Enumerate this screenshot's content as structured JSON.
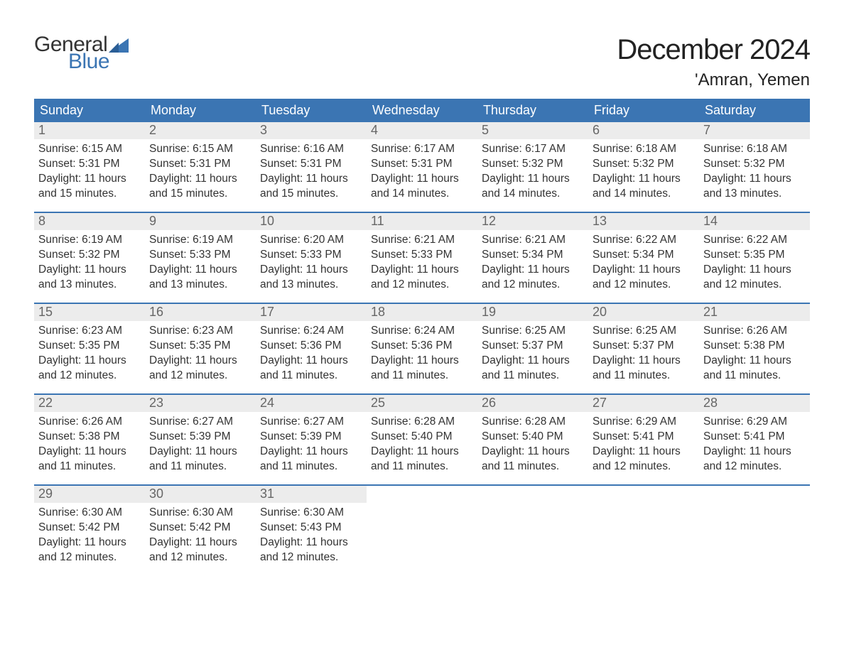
{
  "brand": {
    "line1": "General",
    "line2": "Blue",
    "accent_color": "#3b75b3"
  },
  "title": "December 2024",
  "location": "'Amran, Yemen",
  "colors": {
    "header_bg": "#3b75b3",
    "header_text": "#ffffff",
    "daynum_bg": "#ececec",
    "daynum_text": "#666666",
    "body_text": "#333333",
    "week_border": "#3b75b3",
    "page_bg": "#ffffff"
  },
  "typography": {
    "title_fontsize": 40,
    "location_fontsize": 24,
    "header_fontsize": 18,
    "daynum_fontsize": 18,
    "body_fontsize": 15.5,
    "logo_fontsize": 30
  },
  "day_headers": [
    "Sunday",
    "Monday",
    "Tuesday",
    "Wednesday",
    "Thursday",
    "Friday",
    "Saturday"
  ],
  "weeks": [
    [
      {
        "n": "1",
        "sunrise": "Sunrise: 6:15 AM",
        "sunset": "Sunset: 5:31 PM",
        "d1": "Daylight: 11 hours",
        "d2": "and 15 minutes."
      },
      {
        "n": "2",
        "sunrise": "Sunrise: 6:15 AM",
        "sunset": "Sunset: 5:31 PM",
        "d1": "Daylight: 11 hours",
        "d2": "and 15 minutes."
      },
      {
        "n": "3",
        "sunrise": "Sunrise: 6:16 AM",
        "sunset": "Sunset: 5:31 PM",
        "d1": "Daylight: 11 hours",
        "d2": "and 15 minutes."
      },
      {
        "n": "4",
        "sunrise": "Sunrise: 6:17 AM",
        "sunset": "Sunset: 5:31 PM",
        "d1": "Daylight: 11 hours",
        "d2": "and 14 minutes."
      },
      {
        "n": "5",
        "sunrise": "Sunrise: 6:17 AM",
        "sunset": "Sunset: 5:32 PM",
        "d1": "Daylight: 11 hours",
        "d2": "and 14 minutes."
      },
      {
        "n": "6",
        "sunrise": "Sunrise: 6:18 AM",
        "sunset": "Sunset: 5:32 PM",
        "d1": "Daylight: 11 hours",
        "d2": "and 14 minutes."
      },
      {
        "n": "7",
        "sunrise": "Sunrise: 6:18 AM",
        "sunset": "Sunset: 5:32 PM",
        "d1": "Daylight: 11 hours",
        "d2": "and 13 minutes."
      }
    ],
    [
      {
        "n": "8",
        "sunrise": "Sunrise: 6:19 AM",
        "sunset": "Sunset: 5:32 PM",
        "d1": "Daylight: 11 hours",
        "d2": "and 13 minutes."
      },
      {
        "n": "9",
        "sunrise": "Sunrise: 6:19 AM",
        "sunset": "Sunset: 5:33 PM",
        "d1": "Daylight: 11 hours",
        "d2": "and 13 minutes."
      },
      {
        "n": "10",
        "sunrise": "Sunrise: 6:20 AM",
        "sunset": "Sunset: 5:33 PM",
        "d1": "Daylight: 11 hours",
        "d2": "and 13 minutes."
      },
      {
        "n": "11",
        "sunrise": "Sunrise: 6:21 AM",
        "sunset": "Sunset: 5:33 PM",
        "d1": "Daylight: 11 hours",
        "d2": "and 12 minutes."
      },
      {
        "n": "12",
        "sunrise": "Sunrise: 6:21 AM",
        "sunset": "Sunset: 5:34 PM",
        "d1": "Daylight: 11 hours",
        "d2": "and 12 minutes."
      },
      {
        "n": "13",
        "sunrise": "Sunrise: 6:22 AM",
        "sunset": "Sunset: 5:34 PM",
        "d1": "Daylight: 11 hours",
        "d2": "and 12 minutes."
      },
      {
        "n": "14",
        "sunrise": "Sunrise: 6:22 AM",
        "sunset": "Sunset: 5:35 PM",
        "d1": "Daylight: 11 hours",
        "d2": "and 12 minutes."
      }
    ],
    [
      {
        "n": "15",
        "sunrise": "Sunrise: 6:23 AM",
        "sunset": "Sunset: 5:35 PM",
        "d1": "Daylight: 11 hours",
        "d2": "and 12 minutes."
      },
      {
        "n": "16",
        "sunrise": "Sunrise: 6:23 AM",
        "sunset": "Sunset: 5:35 PM",
        "d1": "Daylight: 11 hours",
        "d2": "and 12 minutes."
      },
      {
        "n": "17",
        "sunrise": "Sunrise: 6:24 AM",
        "sunset": "Sunset: 5:36 PM",
        "d1": "Daylight: 11 hours",
        "d2": "and 11 minutes."
      },
      {
        "n": "18",
        "sunrise": "Sunrise: 6:24 AM",
        "sunset": "Sunset: 5:36 PM",
        "d1": "Daylight: 11 hours",
        "d2": "and 11 minutes."
      },
      {
        "n": "19",
        "sunrise": "Sunrise: 6:25 AM",
        "sunset": "Sunset: 5:37 PM",
        "d1": "Daylight: 11 hours",
        "d2": "and 11 minutes."
      },
      {
        "n": "20",
        "sunrise": "Sunrise: 6:25 AM",
        "sunset": "Sunset: 5:37 PM",
        "d1": "Daylight: 11 hours",
        "d2": "and 11 minutes."
      },
      {
        "n": "21",
        "sunrise": "Sunrise: 6:26 AM",
        "sunset": "Sunset: 5:38 PM",
        "d1": "Daylight: 11 hours",
        "d2": "and 11 minutes."
      }
    ],
    [
      {
        "n": "22",
        "sunrise": "Sunrise: 6:26 AM",
        "sunset": "Sunset: 5:38 PM",
        "d1": "Daylight: 11 hours",
        "d2": "and 11 minutes."
      },
      {
        "n": "23",
        "sunrise": "Sunrise: 6:27 AM",
        "sunset": "Sunset: 5:39 PM",
        "d1": "Daylight: 11 hours",
        "d2": "and 11 minutes."
      },
      {
        "n": "24",
        "sunrise": "Sunrise: 6:27 AM",
        "sunset": "Sunset: 5:39 PM",
        "d1": "Daylight: 11 hours",
        "d2": "and 11 minutes."
      },
      {
        "n": "25",
        "sunrise": "Sunrise: 6:28 AM",
        "sunset": "Sunset: 5:40 PM",
        "d1": "Daylight: 11 hours",
        "d2": "and 11 minutes."
      },
      {
        "n": "26",
        "sunrise": "Sunrise: 6:28 AM",
        "sunset": "Sunset: 5:40 PM",
        "d1": "Daylight: 11 hours",
        "d2": "and 11 minutes."
      },
      {
        "n": "27",
        "sunrise": "Sunrise: 6:29 AM",
        "sunset": "Sunset: 5:41 PM",
        "d1": "Daylight: 11 hours",
        "d2": "and 12 minutes."
      },
      {
        "n": "28",
        "sunrise": "Sunrise: 6:29 AM",
        "sunset": "Sunset: 5:41 PM",
        "d1": "Daylight: 11 hours",
        "d2": "and 12 minutes."
      }
    ],
    [
      {
        "n": "29",
        "sunrise": "Sunrise: 6:30 AM",
        "sunset": "Sunset: 5:42 PM",
        "d1": "Daylight: 11 hours",
        "d2": "and 12 minutes."
      },
      {
        "n": "30",
        "sunrise": "Sunrise: 6:30 AM",
        "sunset": "Sunset: 5:42 PM",
        "d1": "Daylight: 11 hours",
        "d2": "and 12 minutes."
      },
      {
        "n": "31",
        "sunrise": "Sunrise: 6:30 AM",
        "sunset": "Sunset: 5:43 PM",
        "d1": "Daylight: 11 hours",
        "d2": "and 12 minutes."
      },
      {
        "empty": true
      },
      {
        "empty": true
      },
      {
        "empty": true
      },
      {
        "empty": true
      }
    ]
  ]
}
